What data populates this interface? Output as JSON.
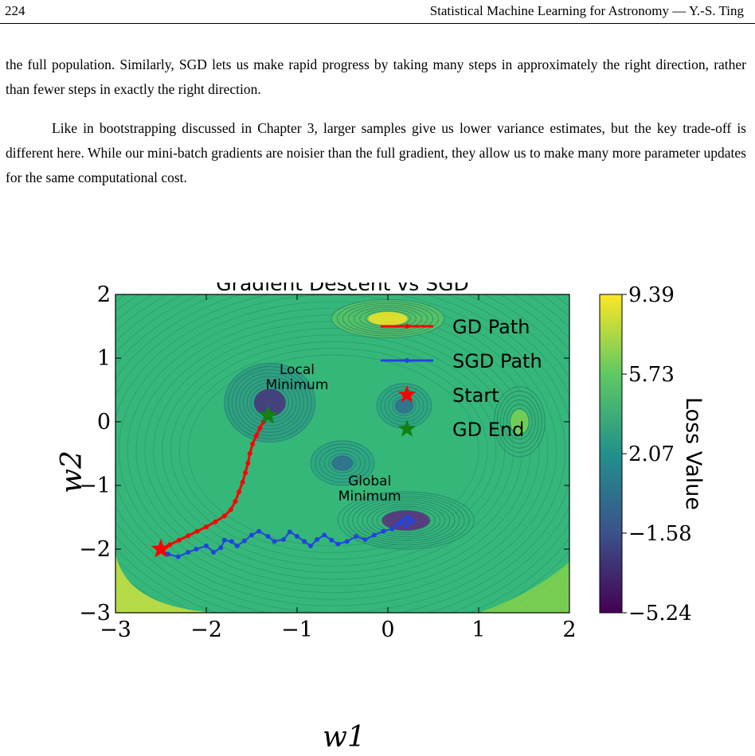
{
  "header": {
    "page_number": "224",
    "running_head": "Statistical Machine Learning for Astronomy — Y.-S. Ting"
  },
  "paragraphs": [
    "the full population. Similarly, SGD lets us make rapid progress by taking many steps in approximately the right direction, rather than fewer steps in exactly the right direction.",
    "Like in bootstrapping discussed in Chapter 3, larger samples give us lower variance estimates, but the key trade-off is different here. While our mini-batch gradients are noisier than the full gradient, they allow us to make many more parameter updates for the same computational cost."
  ],
  "chart_data": {
    "type": "contour",
    "title": "Gradient Descent vs SGD",
    "xlabel": "w1",
    "ylabel": "w2",
    "xlim": [
      -3,
      2
    ],
    "ylim": [
      -3,
      2
    ],
    "x_ticks": [
      -3,
      -2,
      -1,
      0,
      1,
      2
    ],
    "y_ticks": [
      -3,
      -2,
      -1,
      0,
      1,
      2
    ],
    "colorbar": {
      "label": "Loss Value",
      "ticks": [
        -5.24,
        -1.58,
        2.07,
        5.73,
        9.39
      ],
      "colormap": [
        "#440154",
        "#3b528b",
        "#21918c",
        "#5ec962",
        "#fde725"
      ]
    },
    "annotations": [
      {
        "text": [
          "Local",
          "Minimum"
        ],
        "x": -1.0,
        "y": 0.75
      },
      {
        "text": [
          "Global",
          "Minimum"
        ],
        "x": -0.2,
        "y": -1.0
      }
    ],
    "legend": {
      "position": "top-right",
      "entries": [
        {
          "label": "GD Path",
          "color": "#ff0000",
          "marker": "line"
        },
        {
          "label": "SGD Path",
          "color": "#2244dd",
          "marker": "line"
        },
        {
          "label": "Start",
          "color": "#ff0000",
          "marker": "star"
        },
        {
          "label": "GD End",
          "color": "#128012",
          "marker": "star"
        }
      ]
    },
    "series": [
      {
        "name": "GD Path",
        "color": "#ff0000",
        "points": [
          [
            -2.5,
            -2.0
          ],
          [
            -2.4,
            -1.93
          ],
          [
            -2.3,
            -1.86
          ],
          [
            -2.2,
            -1.79
          ],
          [
            -2.1,
            -1.72
          ],
          [
            -2.0,
            -1.65
          ],
          [
            -1.9,
            -1.57
          ],
          [
            -1.8,
            -1.48
          ],
          [
            -1.73,
            -1.38
          ],
          [
            -1.68,
            -1.25
          ],
          [
            -1.64,
            -1.1
          ],
          [
            -1.6,
            -0.95
          ],
          [
            -1.57,
            -0.8
          ],
          [
            -1.54,
            -0.65
          ],
          [
            -1.52,
            -0.5
          ],
          [
            -1.49,
            -0.35
          ],
          [
            -1.45,
            -0.22
          ],
          [
            -1.41,
            -0.1
          ],
          [
            -1.37,
            0.0
          ],
          [
            -1.34,
            0.06
          ],
          [
            -1.32,
            0.1
          ]
        ]
      },
      {
        "name": "SGD Path",
        "color": "#2244dd",
        "points": [
          [
            -2.5,
            -2.0
          ],
          [
            -2.42,
            -2.08
          ],
          [
            -2.31,
            -2.12
          ],
          [
            -2.2,
            -2.05
          ],
          [
            -2.11,
            -2.0
          ],
          [
            -2.0,
            -1.95
          ],
          [
            -1.92,
            -2.05
          ],
          [
            -1.84,
            -1.98
          ],
          [
            -1.8,
            -1.86
          ],
          [
            -1.72,
            -1.88
          ],
          [
            -1.66,
            -1.95
          ],
          [
            -1.58,
            -1.87
          ],
          [
            -1.5,
            -1.78
          ],
          [
            -1.42,
            -1.72
          ],
          [
            -1.32,
            -1.8
          ],
          [
            -1.25,
            -1.88
          ],
          [
            -1.15,
            -1.85
          ],
          [
            -1.08,
            -1.73
          ],
          [
            -1.0,
            -1.8
          ],
          [
            -0.92,
            -1.88
          ],
          [
            -0.85,
            -1.95
          ],
          [
            -0.78,
            -1.85
          ],
          [
            -0.7,
            -1.78
          ],
          [
            -0.62,
            -1.86
          ],
          [
            -0.55,
            -1.92
          ],
          [
            -0.45,
            -1.88
          ],
          [
            -0.35,
            -1.8
          ],
          [
            -0.25,
            -1.85
          ],
          [
            -0.15,
            -1.78
          ],
          [
            -0.05,
            -1.72
          ],
          [
            0.05,
            -1.68
          ],
          [
            0.12,
            -1.6
          ],
          [
            0.2,
            -1.52
          ],
          [
            0.25,
            -1.58
          ],
          [
            0.2,
            -1.64
          ],
          [
            0.15,
            -1.56
          ],
          [
            0.22,
            -1.5
          ],
          [
            0.27,
            -1.55
          ]
        ]
      }
    ],
    "markers": [
      {
        "name": "Start",
        "x": -2.5,
        "y": -2.0,
        "color": "#ff0000",
        "shape": "star"
      },
      {
        "name": "GD End",
        "x": -1.32,
        "y": 0.1,
        "color": "#128012",
        "shape": "star"
      }
    ]
  }
}
